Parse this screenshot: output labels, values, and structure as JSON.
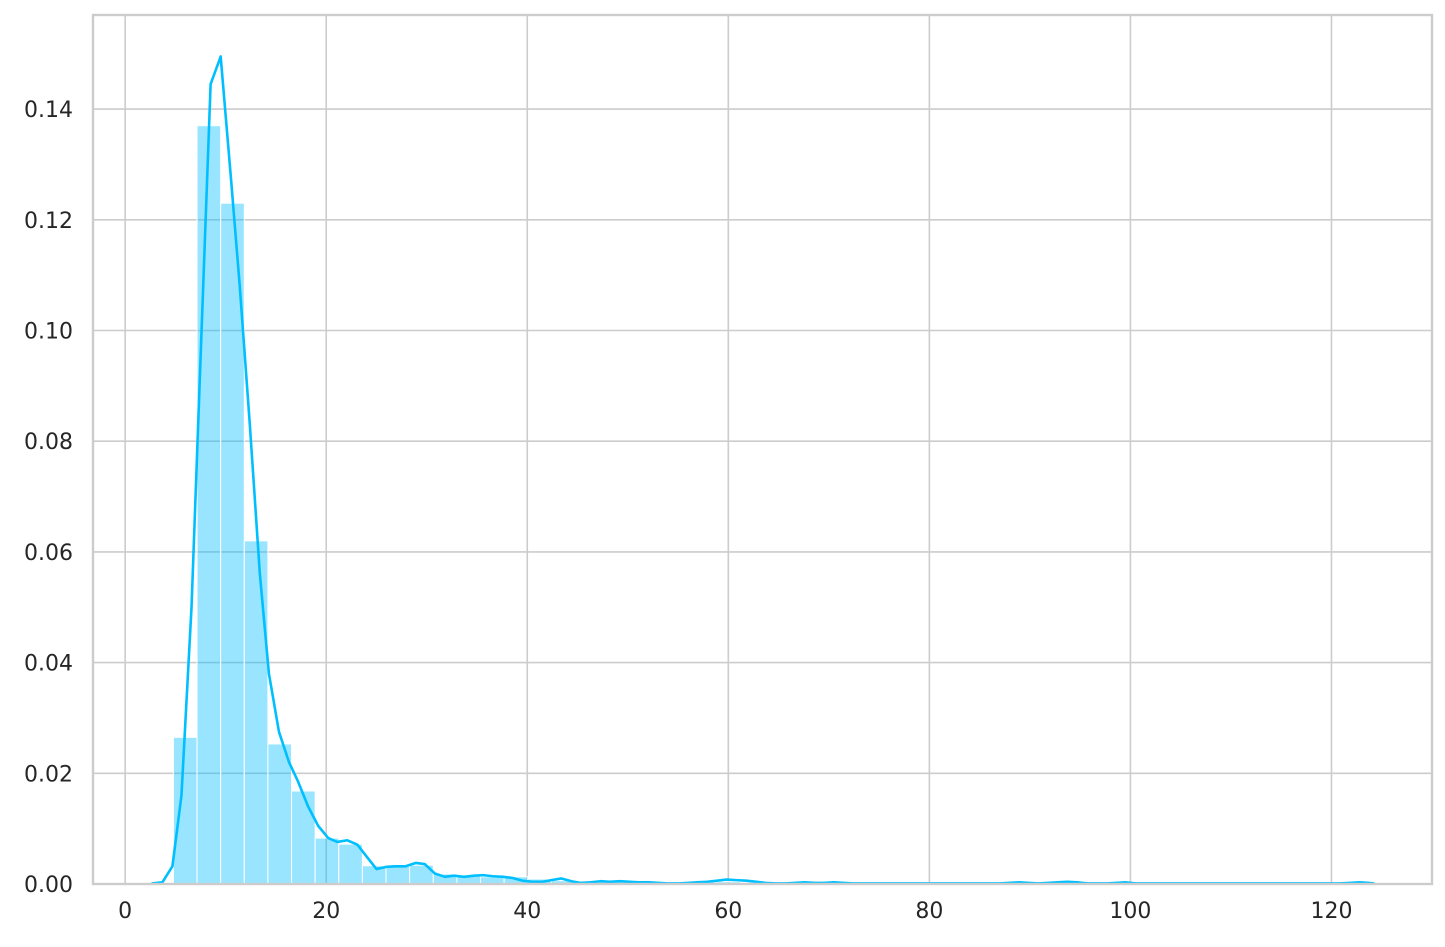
{
  "chart_data": {
    "type": "bar",
    "subtype": "histogram_with_kde",
    "title": "",
    "xlabel": "",
    "ylabel": "",
    "xlim": [
      -3.2,
      130
    ],
    "ylim": [
      0,
      0.157
    ],
    "grid": true,
    "colors": {
      "bar_fill": "#00bfff",
      "bar_fill_opacity": 0.4,
      "bar_edge": "#ffffff",
      "kde_line": "#00bfff",
      "grid": "#cccccc",
      "axes_edge": "#cccccc",
      "text": "#262626"
    },
    "x_ticks": [
      0,
      20,
      40,
      60,
      80,
      100,
      120
    ],
    "x_tick_labels": [
      "0",
      "20",
      "40",
      "60",
      "80",
      "100",
      "120"
    ],
    "y_ticks": [
      0.0,
      0.02,
      0.04,
      0.06,
      0.08,
      0.1,
      0.12,
      0.14
    ],
    "y_tick_labels": [
      "0.00",
      "0.02",
      "0.04",
      "0.06",
      "0.08",
      "0.10",
      "0.12",
      "0.14"
    ],
    "histogram": {
      "bin_start": 4.8,
      "bin_width": 2.35,
      "values": [
        0.0265,
        0.137,
        0.123,
        0.062,
        0.0253,
        0.0168,
        0.0083,
        0.0072,
        0.0033,
        0.0032,
        0.0034,
        0.0018,
        0.0014,
        0.0013,
        0.0013,
        0.0009,
        0.0006,
        0.0003,
        0.0006,
        0.0004,
        0.0003,
        0.0004,
        0.0003,
        0.0004,
        0.0002,
        0.0002,
        0.0004,
        0.0004,
        0.0002,
        0.0002,
        0.0001,
        0.0002,
        0.0001,
        0.0001,
        0.0001,
        0.0001,
        0.0001,
        0.0001,
        0.0001,
        0.0003,
        0.0002,
        0.0002,
        0.0002,
        0.0002,
        0.0001,
        0.0001,
        0.0001,
        0.0001,
        0.0001,
        0.0001,
        0.0002,
        0.0001
      ]
    },
    "kde": {
      "x": [
        2.7,
        3.7,
        4.7,
        5.6,
        6.6,
        7.6,
        8.5,
        9.5,
        10.5,
        11.4,
        12.4,
        13.4,
        14.3,
        15.3,
        16.3,
        17.2,
        18.2,
        19.2,
        20.2,
        21.1,
        22.1,
        23.1,
        24.0,
        25.0,
        26.0,
        26.9,
        27.9,
        28.9,
        29.8,
        30.8,
        31.8,
        32.7,
        33.7,
        34.7,
        35.6,
        36.6,
        37.6,
        38.5,
        39.5,
        40.5,
        41.5,
        42.4,
        43.4,
        44.4,
        45.3,
        46.3,
        47.3,
        48.2,
        49.2,
        50.2,
        51.1,
        52.1,
        53.1,
        54.0,
        55.0,
        56.0,
        56.9,
        57.9,
        58.9,
        59.8,
        60.8,
        61.8,
        62.8,
        63.7,
        64.7,
        65.7,
        66.6,
        67.6,
        68.6,
        69.5,
        70.5,
        71.5,
        72.4,
        73.4,
        74.4,
        75.3,
        76.3,
        77.3,
        78.2,
        79.2,
        80.2,
        81.1,
        82.1,
        83.1,
        84.1,
        85.0,
        86.0,
        87.0,
        87.9,
        88.9,
        89.9,
        90.8,
        91.8,
        92.8,
        93.7,
        94.7,
        95.7,
        96.6,
        97.6,
        98.6,
        99.5,
        100.5,
        101.5,
        102.4,
        103.4,
        104.4,
        105.4,
        106.3,
        107.3,
        108.3,
        109.2,
        110.2,
        111.2,
        112.1,
        113.1,
        114.1,
        115.0,
        116.0,
        117.0,
        117.9,
        118.9,
        119.9,
        120.8,
        121.8,
        122.8,
        123.7,
        124.2
      ],
      "y": [
        0.0001,
        0.0003,
        0.0032,
        0.016,
        0.05,
        0.1,
        0.1445,
        0.1495,
        0.128,
        0.108,
        0.083,
        0.056,
        0.038,
        0.0275,
        0.022,
        0.0185,
        0.014,
        0.0105,
        0.0083,
        0.0076,
        0.0079,
        0.0071,
        0.005,
        0.0027,
        0.0031,
        0.0032,
        0.0032,
        0.0038,
        0.0036,
        0.0019,
        0.0013,
        0.0015,
        0.0013,
        0.0015,
        0.0016,
        0.0014,
        0.0013,
        0.0011,
        0.0006,
        0.0004,
        0.0004,
        0.0007,
        0.001,
        0.0005,
        0.0002,
        0.0003,
        0.0005,
        0.0004,
        0.0005,
        0.0004,
        0.0003,
        0.0003,
        0.0002,
        0.0001,
        0.0001,
        0.0002,
        0.0003,
        0.0004,
        0.0006,
        0.0008,
        0.0007,
        0.0006,
        0.0004,
        0.0002,
        0.0001,
        0.0001,
        0.0002,
        0.0003,
        0.0002,
        0.0002,
        0.0003,
        0.0002,
        0.0001,
        0.0001,
        0.0001,
        0.0001,
        0.0001,
        0.0001,
        0.0001,
        0.0001,
        0.0001,
        0.0001,
        0.0001,
        0.0001,
        0.0001,
        0.0001,
        0.0001,
        0.0001,
        0.0002,
        0.0003,
        0.0002,
        0.0001,
        0.0002,
        0.0003,
        0.0004,
        0.0003,
        0.0001,
        0.0001,
        0.0001,
        0.0002,
        0.0003,
        0.0001,
        0.0001,
        0.0001,
        0.0001,
        0.0001,
        0.0001,
        0.0001,
        0.0001,
        0.0001,
        0.0001,
        0.0001,
        0.0001,
        0.0001,
        0.0001,
        0.0001,
        0.0001,
        0.0001,
        0.0001,
        0.0001,
        0.0001,
        0.0001,
        0.0001,
        0.0002,
        0.0003,
        0.0002,
        0.0001
      ]
    }
  }
}
